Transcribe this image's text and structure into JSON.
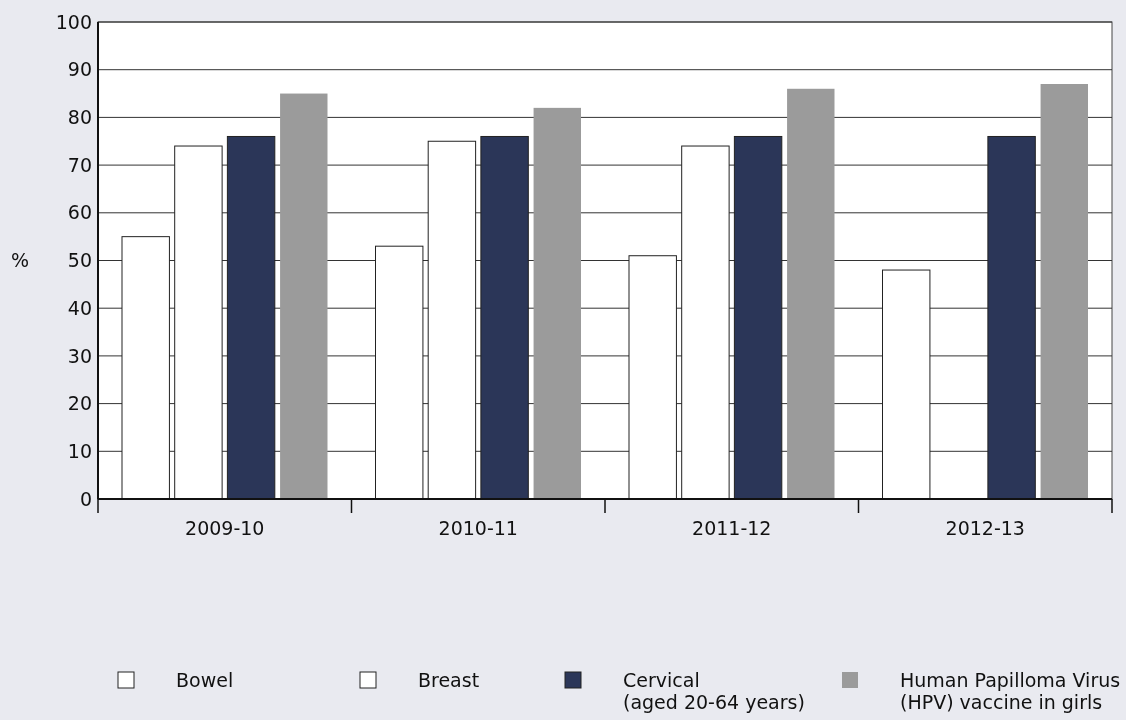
{
  "chart_data": {
    "type": "bar",
    "ylabel": "%",
    "categories": [
      "2009-10",
      "2010-11",
      "2011-12",
      "2012-13"
    ],
    "series": [
      {
        "name": "Bowel",
        "color": "#ffffff",
        "values": [
          55,
          53,
          51,
          48
        ]
      },
      {
        "name": "Breast",
        "color": "#ffffff",
        "values": [
          74,
          75,
          74,
          null
        ]
      },
      {
        "name": "Cervical\n(aged 20-64 years)",
        "color": "#2b3658",
        "values": [
          76,
          76,
          76,
          76
        ]
      },
      {
        "name": "Human Papilloma Virus\n(HPV) vaccine in girls",
        "color": "#9b9b9b",
        "values": [
          85,
          82,
          86,
          87
        ]
      }
    ],
    "ylim": [
      0,
      100
    ],
    "yticks": [
      0,
      10,
      20,
      30,
      40,
      50,
      60,
      70,
      80,
      90,
      100
    ],
    "grid": "y",
    "legend": "bottom"
  }
}
